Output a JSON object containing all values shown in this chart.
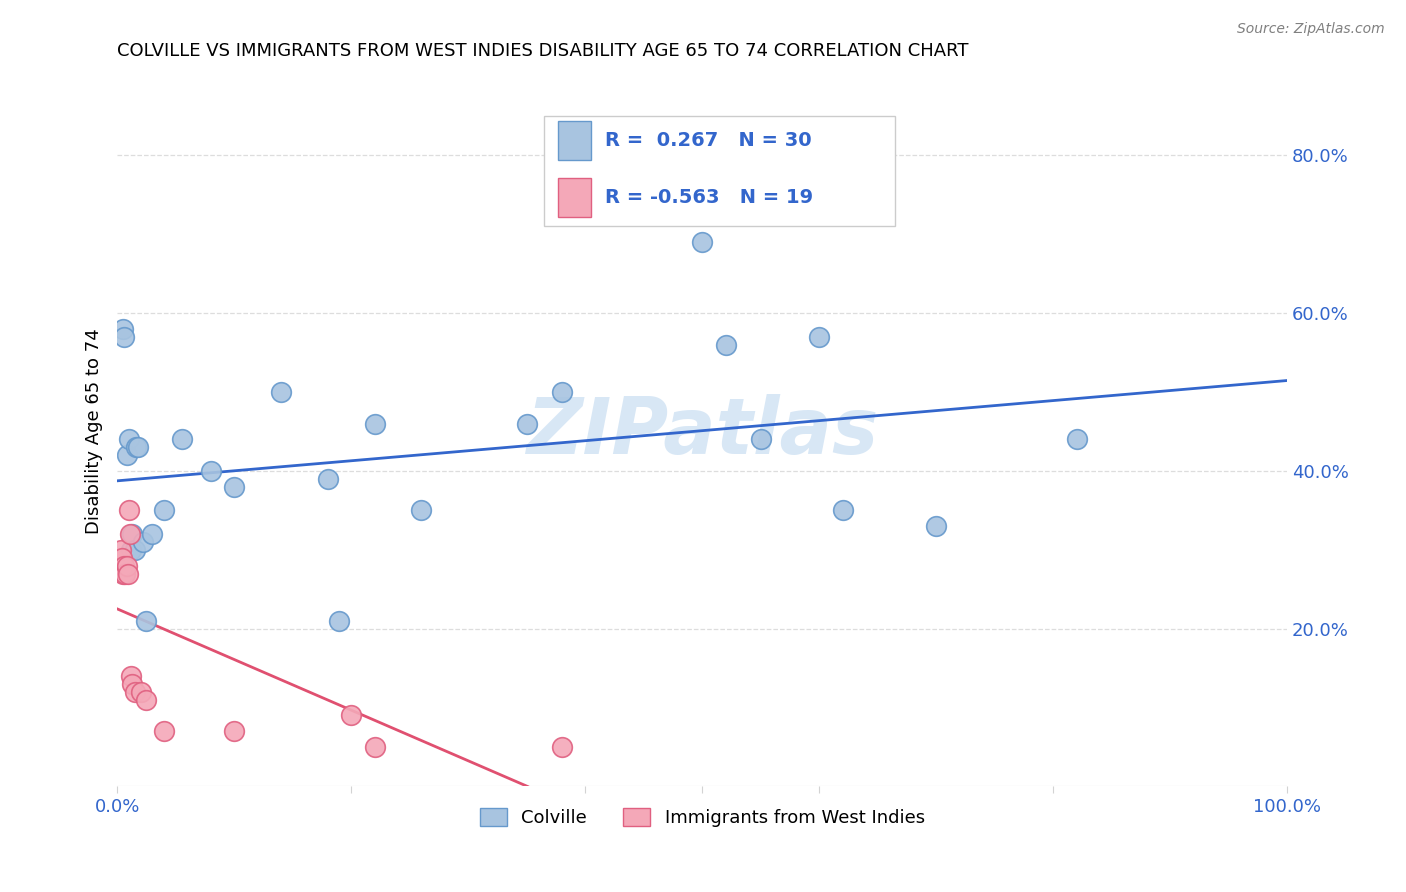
{
  "title": "COLVILLE VS IMMIGRANTS FROM WEST INDIES DISABILITY AGE 65 TO 74 CORRELATION CHART",
  "source": "Source: ZipAtlas.com",
  "ylabel": "Disability Age 65 to 74",
  "ytick_labels": [
    "20.0%",
    "40.0%",
    "60.0%",
    "80.0%"
  ],
  "ytick_values": [
    0.2,
    0.4,
    0.6,
    0.8
  ],
  "xlim": [
    0.0,
    1.0
  ],
  "ylim": [
    0.0,
    0.9
  ],
  "colville_x": [
    0.005,
    0.006,
    0.008,
    0.01,
    0.012,
    0.013,
    0.015,
    0.016,
    0.018,
    0.022,
    0.025,
    0.03,
    0.04,
    0.055,
    0.08,
    0.1,
    0.14,
    0.18,
    0.19,
    0.22,
    0.26,
    0.35,
    0.38,
    0.5,
    0.52,
    0.55,
    0.6,
    0.62,
    0.7,
    0.82
  ],
  "colville_y": [
    0.58,
    0.57,
    0.42,
    0.44,
    0.3,
    0.32,
    0.3,
    0.43,
    0.43,
    0.31,
    0.21,
    0.32,
    0.35,
    0.44,
    0.4,
    0.38,
    0.5,
    0.39,
    0.21,
    0.46,
    0.35,
    0.46,
    0.5,
    0.69,
    0.56,
    0.44,
    0.57,
    0.35,
    0.33,
    0.44
  ],
  "immigrants_x": [
    0.003,
    0.004,
    0.005,
    0.006,
    0.007,
    0.008,
    0.009,
    0.01,
    0.011,
    0.012,
    0.013,
    0.015,
    0.02,
    0.025,
    0.04,
    0.1,
    0.2,
    0.22,
    0.38
  ],
  "immigrants_y": [
    0.3,
    0.29,
    0.27,
    0.28,
    0.27,
    0.28,
    0.27,
    0.35,
    0.32,
    0.14,
    0.13,
    0.12,
    0.12,
    0.11,
    0.07,
    0.07,
    0.09,
    0.05,
    0.05
  ],
  "colville_color": "#a8c4e0",
  "colville_edge_color": "#6699cc",
  "immigrants_color": "#f4a8b8",
  "immigrants_edge_color": "#e06080",
  "blue_line_color": "#3366cc",
  "pink_line_color": "#e05070",
  "R_colville": 0.267,
  "N_colville": 30,
  "R_immigrants": -0.563,
  "N_immigrants": 19,
  "legend_colville": "Colville",
  "legend_immigrants": "Immigrants from West Indies",
  "watermark": "ZIPatlas",
  "background_color": "#ffffff",
  "grid_color": "#dddddd",
  "tick_label_color": "#3366cc",
  "text_color": "#3366cc"
}
